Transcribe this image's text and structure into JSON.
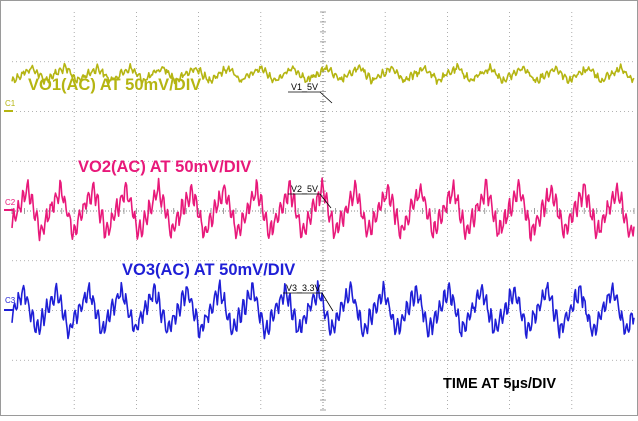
{
  "chart_data": {
    "type": "line",
    "grid": true,
    "x_divisions": 10,
    "y_divisions": 8,
    "time_label": "TIME AT 5µs/DIV",
    "channels": [
      {
        "marker": "C1",
        "name": "VO1(AC) AT 50mV/DIV",
        "probe_label": "V1_5V",
        "color": "#b5b512",
        "ripple_cycles": 19,
        "offset_div": 2.75,
        "amplitude_div": 0.13,
        "noise_div": 0.05
      },
      {
        "marker": "C2",
        "name": "VO2(AC) AT 50mV/DIV",
        "probe_label": "V2_5V",
        "color": "#e8197a",
        "ripple_cycles": 19,
        "offset_div": 0.0,
        "amplitude_div": 0.45,
        "noise_div": 0.08
      },
      {
        "marker": "C3",
        "name": "VO3(AC) AT 50mV/DIV",
        "probe_label": "V3_3.3V",
        "color": "#1f1fd6",
        "ripple_cycles": 19,
        "offset_div": -2.0,
        "amplitude_div": 0.42,
        "noise_div": 0.08
      }
    ]
  }
}
